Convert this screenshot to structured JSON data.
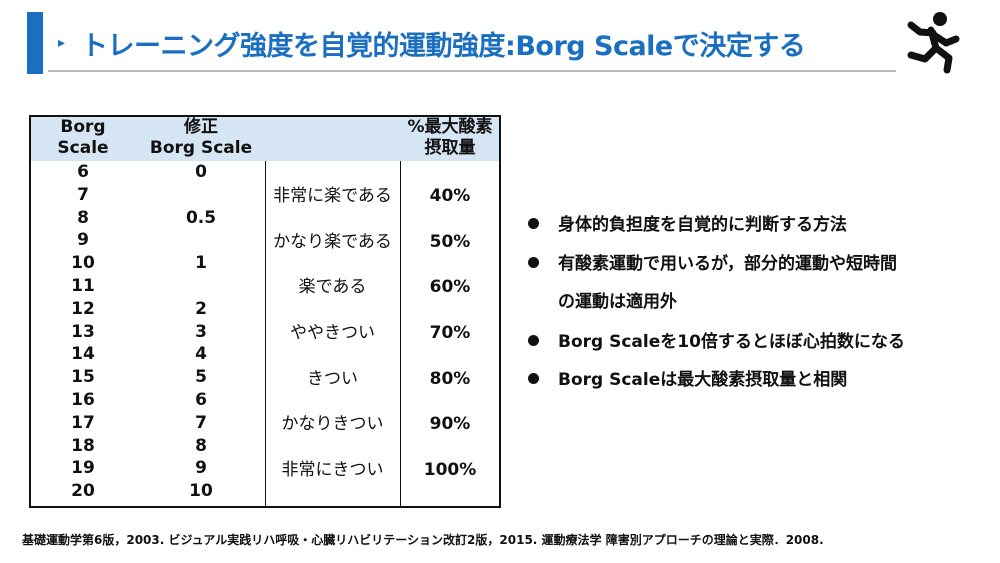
{
  "title": {
    "arrow": "▸",
    "text": "トレーニング強度を自覚的運動強度:Borg Scaleで決定する"
  },
  "icons": {
    "runner": "running-person-icon"
  },
  "table": {
    "headers": {
      "borg_line1": "Borg",
      "borg_line2": "Scale",
      "mod_line1": "修正",
      "mod_line2": "Borg Scale",
      "vo2_line1": "%最大酸素",
      "vo2_line2": "摂取量"
    },
    "borg": [
      "6",
      "7",
      "8",
      "9",
      "10",
      "11",
      "12",
      "13",
      "14",
      "15",
      "16",
      "17",
      "18",
      "19",
      "20"
    ],
    "modified": [
      "0",
      "",
      "0.5",
      "",
      "1",
      "",
      "2",
      "3",
      "4",
      "5",
      "6",
      "7",
      "8",
      "9",
      "10"
    ],
    "descriptions": [
      "非常に楽である",
      "かなり楽である",
      "楽である",
      "ややきつい",
      "きつい",
      "かなりきつい",
      "非常にきつい"
    ],
    "vo2max": [
      "40%",
      "50%",
      "60%",
      "70%",
      "80%",
      "90%",
      "100%"
    ]
  },
  "bullets": [
    "身体的負担度を自覚的に判断する方法",
    "有酸素運動で用いるが，部分的運動や短時間",
    "の運動は適用外",
    "Borg Scaleを10倍するとほぼ心拍数になる",
    "Borg Scaleは最大酸素摂取量と相関"
  ],
  "reference": "基礎運動学第6版，2003.  ビジュアル実践リハ呼吸・心臓リハビリテーション改訂2版，2015.  運動療法学 障害別アプローチの理論と実際．2008."
}
